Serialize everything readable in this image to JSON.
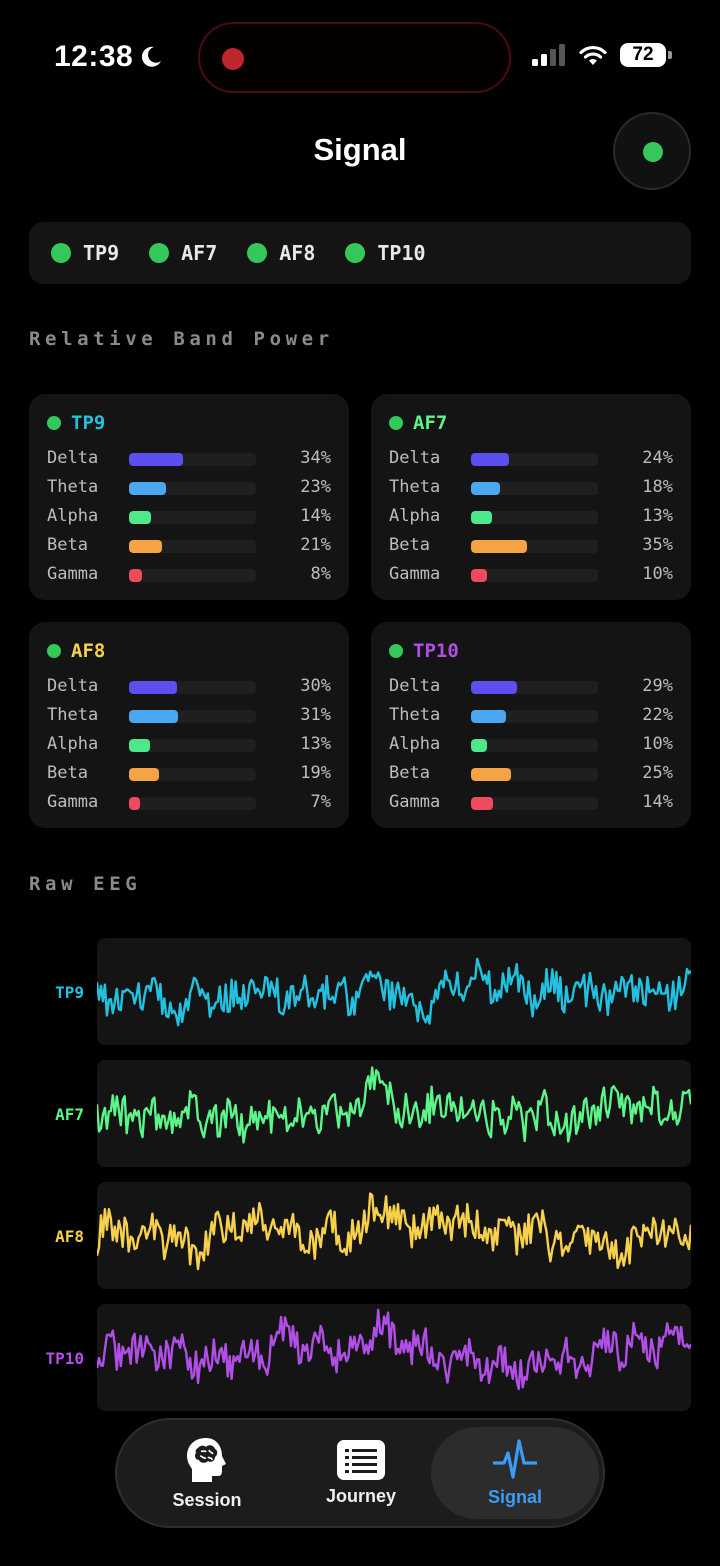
{
  "status_bar": {
    "time": "12:38",
    "battery": "72"
  },
  "header": {
    "title": "Signal"
  },
  "sensors": [
    "TP9",
    "AF7",
    "AF8",
    "TP10"
  ],
  "sections": {
    "band_power": "Relative Band Power",
    "raw_eeg": "Raw EEG"
  },
  "colors": {
    "delta": "#5b4ff0",
    "theta": "#4aa8f2",
    "alpha": "#4ee88a",
    "beta": "#f5a445",
    "gamma": "#ef4a5d",
    "tp9": "#22c1df",
    "af7": "#5cf58a",
    "af8": "#f7d04e",
    "tp10": "#b04ee6",
    "connected": "#34c759",
    "accent": "#3b9cf5"
  },
  "band_cards": [
    {
      "channel": "TP9",
      "color": "#22c1df",
      "bands": [
        {
          "label": "Delta",
          "value": "34%",
          "fraction": 0.34
        },
        {
          "label": "Theta",
          "value": "23%",
          "fraction": 0.23
        },
        {
          "label": "Alpha",
          "value": "14%",
          "fraction": 0.14
        },
        {
          "label": "Beta",
          "value": "21%",
          "fraction": 0.21
        },
        {
          "label": "Gamma",
          "value": "8%",
          "fraction": 0.08
        }
      ]
    },
    {
      "channel": "AF7",
      "color": "#5cf58a",
      "bands": [
        {
          "label": "Delta",
          "value": "24%",
          "fraction": 0.24
        },
        {
          "label": "Theta",
          "value": "18%",
          "fraction": 0.18
        },
        {
          "label": "Alpha",
          "value": "13%",
          "fraction": 0.13
        },
        {
          "label": "Beta",
          "value": "35%",
          "fraction": 0.35
        },
        {
          "label": "Gamma",
          "value": "10%",
          "fraction": 0.1
        }
      ]
    },
    {
      "channel": "AF8",
      "color": "#f7d04e",
      "bands": [
        {
          "label": "Delta",
          "value": "30%",
          "fraction": 0.3
        },
        {
          "label": "Theta",
          "value": "31%",
          "fraction": 0.31
        },
        {
          "label": "Alpha",
          "value": "13%",
          "fraction": 0.13
        },
        {
          "label": "Beta",
          "value": "19%",
          "fraction": 0.19
        },
        {
          "label": "Gamma",
          "value": "7%",
          "fraction": 0.07
        }
      ]
    },
    {
      "channel": "TP10",
      "color": "#b04ee6",
      "bands": [
        {
          "label": "Delta",
          "value": "29%",
          "fraction": 0.29
        },
        {
          "label": "Theta",
          "value": "22%",
          "fraction": 0.22
        },
        {
          "label": "Alpha",
          "value": "10%",
          "fraction": 0.1
        },
        {
          "label": "Beta",
          "value": "25%",
          "fraction": 0.25
        },
        {
          "label": "Gamma",
          "value": "14%",
          "fraction": 0.14
        }
      ]
    }
  ],
  "eeg_channels": [
    {
      "label": "TP9",
      "color": "#22c1df"
    },
    {
      "label": "AF7",
      "color": "#5cf58a"
    },
    {
      "label": "AF8",
      "color": "#f7d04e"
    },
    {
      "label": "TP10",
      "color": "#b04ee6"
    }
  ],
  "tabs": [
    {
      "label": "Session",
      "icon": "brain-head-icon",
      "active": false
    },
    {
      "label": "Journey",
      "icon": "list-icon",
      "active": false
    },
    {
      "label": "Signal",
      "icon": "waveform-icon",
      "active": true
    }
  ]
}
